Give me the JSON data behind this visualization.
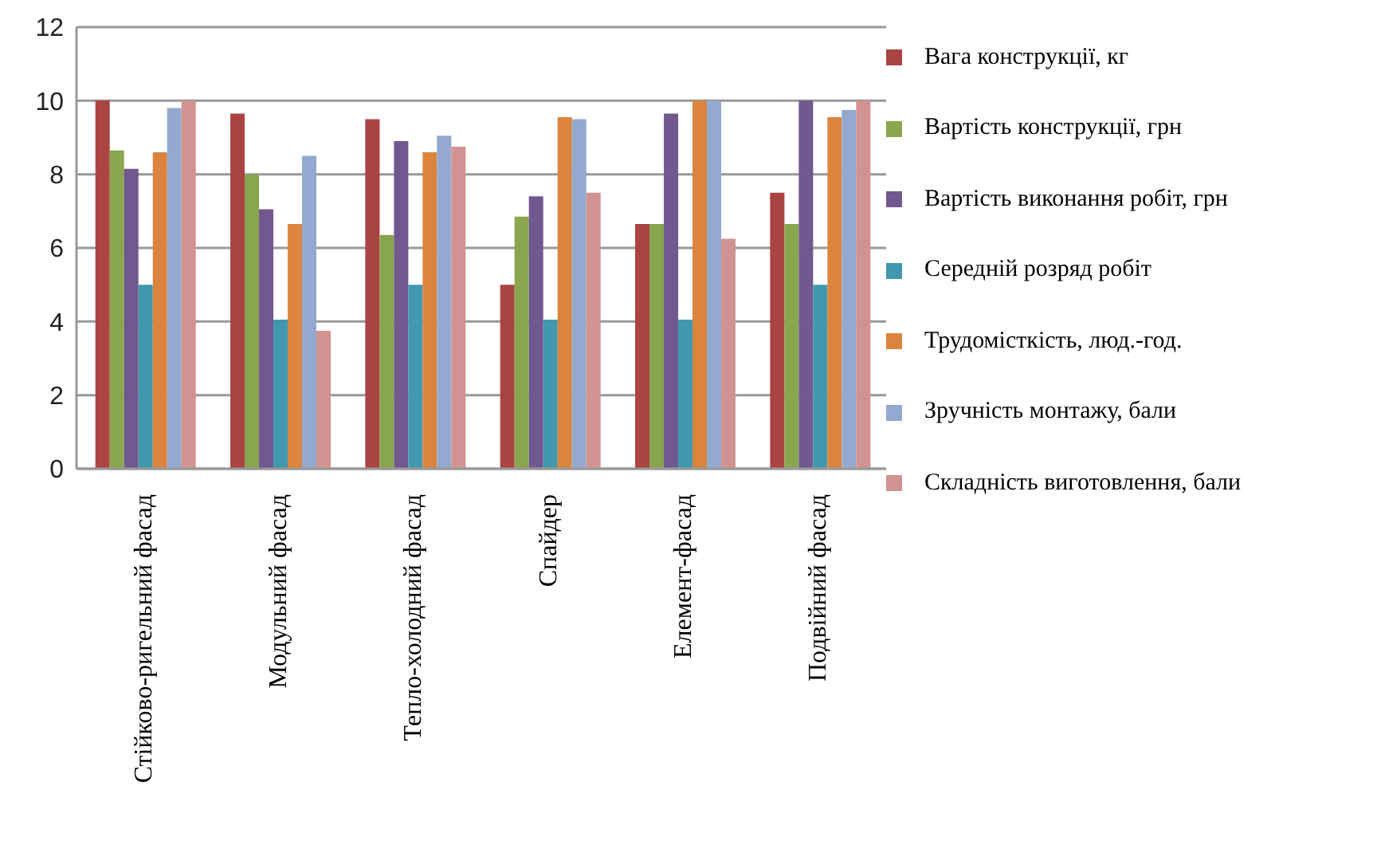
{
  "chart_data": {
    "type": "bar",
    "categories": [
      "Стійково-ригельний фасад",
      "Модульний фасад",
      "Тепло-холодний фасад",
      "Спайдер",
      "Елемент-фасад",
      "Подвійний фасад"
    ],
    "series": [
      {
        "name": "Вага конструкції, кг",
        "color": "#a94442",
        "values": [
          10,
          9.65,
          9.5,
          5,
          6.65,
          7.5
        ]
      },
      {
        "name": "Вартість конструкції, грн",
        "color": "#89a54e",
        "values": [
          8.65,
          8,
          6.35,
          6.85,
          6.65,
          6.65
        ]
      },
      {
        "name": "Вартість виконання робіт, грн",
        "color": "#71588f",
        "values": [
          8.15,
          7.05,
          8.9,
          7.4,
          9.65,
          10
        ]
      },
      {
        "name": "Середній розряд робіт",
        "color": "#4198af",
        "values": [
          5,
          4.05,
          5,
          4.05,
          4.05,
          5
        ]
      },
      {
        "name": "Трудомісткість, люд.-год.",
        "color": "#db843d",
        "values": [
          8.6,
          6.65,
          8.6,
          9.55,
          10,
          9.55
        ]
      },
      {
        "name": "Зручність монтажу, бали",
        "color": "#93a9cf",
        "values": [
          9.8,
          8.5,
          9.05,
          9.5,
          10,
          9.75
        ]
      },
      {
        "name": "Складність виготовлення, бали",
        "color": "#d19392",
        "values": [
          10,
          3.75,
          8.75,
          7.5,
          6.25,
          10
        ]
      }
    ],
    "ylim": [
      0,
      12
    ],
    "yticks": [
      0,
      2,
      4,
      6,
      8,
      10,
      12
    ],
    "grid": "y",
    "legend": "right"
  }
}
